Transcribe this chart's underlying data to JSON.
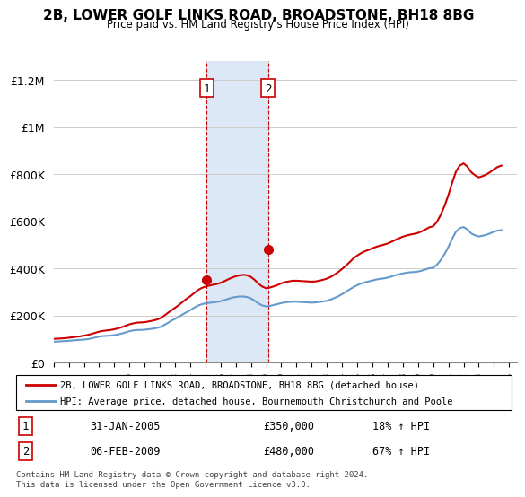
{
  "title": "2B, LOWER GOLF LINKS ROAD, BROADSTONE, BH18 8BG",
  "subtitle": "Price paid vs. HM Land Registry's House Price Index (HPI)",
  "ylabel_ticks": [
    "£0",
    "£200K",
    "£400K",
    "£600K",
    "£800K",
    "£1M",
    "£1.2M"
  ],
  "ytick_values": [
    0,
    200000,
    400000,
    600000,
    800000,
    1000000,
    1200000
  ],
  "ylim": [
    0,
    1280000
  ],
  "xlim_start": 1995.0,
  "xlim_end": 2025.5,
  "hpi_color": "#6699cc",
  "price_color": "#cc0000",
  "bg_color": "#ffffff",
  "grid_color": "#cccccc",
  "legend_line1": "2B, LOWER GOLF LINKS ROAD, BROADSTONE, BH18 8BG (detached house)",
  "legend_line2": "HPI: Average price, detached house, Bournemouth Christchurch and Poole",
  "sale1_label": "1",
  "sale1_date": "31-JAN-2005",
  "sale1_price": "£350,000",
  "sale1_hpi": "18% ↑ HPI",
  "sale1_x": 2005.08,
  "sale1_y": 350000,
  "sale2_label": "2",
  "sale2_date": "06-FEB-2009",
  "sale2_price": "£480,000",
  "sale2_hpi": "67% ↑ HPI",
  "sale2_x": 2009.12,
  "sale2_y": 480000,
  "shade_x1": 2005.08,
  "shade_x2": 2009.12,
  "footnote": "Contains HM Land Registry data © Crown copyright and database right 2024.\nThis data is licensed under the Open Government Licence v3.0.",
  "hpi_data_x": [
    1995,
    1995.25,
    1995.5,
    1995.75,
    1996,
    1996.25,
    1996.5,
    1996.75,
    1997,
    1997.25,
    1997.5,
    1997.75,
    1998,
    1998.25,
    1998.5,
    1998.75,
    1999,
    1999.25,
    1999.5,
    1999.75,
    2000,
    2000.25,
    2000.5,
    2000.75,
    2001,
    2001.25,
    2001.5,
    2001.75,
    2002,
    2002.25,
    2002.5,
    2002.75,
    2003,
    2003.25,
    2003.5,
    2003.75,
    2004,
    2004.25,
    2004.5,
    2004.75,
    2005,
    2005.25,
    2005.5,
    2005.75,
    2006,
    2006.25,
    2006.5,
    2006.75,
    2007,
    2007.25,
    2007.5,
    2007.75,
    2008,
    2008.25,
    2008.5,
    2008.75,
    2009,
    2009.25,
    2009.5,
    2009.75,
    2010,
    2010.25,
    2010.5,
    2010.75,
    2011,
    2011.25,
    2011.5,
    2011.75,
    2012,
    2012.25,
    2012.5,
    2012.75,
    2013,
    2013.25,
    2013.5,
    2013.75,
    2014,
    2014.25,
    2014.5,
    2014.75,
    2015,
    2015.25,
    2015.5,
    2015.75,
    2016,
    2016.25,
    2016.5,
    2016.75,
    2017,
    2017.25,
    2017.5,
    2017.75,
    2018,
    2018.25,
    2018.5,
    2018.75,
    2019,
    2019.25,
    2019.5,
    2019.75,
    2020,
    2020.25,
    2020.5,
    2020.75,
    2021,
    2021.25,
    2021.5,
    2021.75,
    2022,
    2022.25,
    2022.5,
    2022.75,
    2023,
    2023.25,
    2023.5,
    2023.75,
    2024,
    2024.25,
    2024.5
  ],
  "hpi_data_y": [
    88000,
    89000,
    90000,
    91000,
    92000,
    93500,
    95000,
    96000,
    97000,
    99000,
    102000,
    106000,
    110000,
    112000,
    113000,
    114000,
    116000,
    119000,
    123000,
    128000,
    133000,
    136000,
    138000,
    138000,
    139000,
    141000,
    143000,
    146000,
    150000,
    158000,
    167000,
    177000,
    185000,
    194000,
    204000,
    213000,
    222000,
    232000,
    241000,
    247000,
    251000,
    253000,
    255000,
    257000,
    260000,
    265000,
    270000,
    275000,
    278000,
    280000,
    280000,
    278000,
    272000,
    262000,
    250000,
    242000,
    238000,
    240000,
    244000,
    248000,
    252000,
    255000,
    257000,
    258000,
    258000,
    257000,
    256000,
    255000,
    254000,
    255000,
    257000,
    259000,
    262000,
    267000,
    274000,
    281000,
    290000,
    300000,
    310000,
    320000,
    328000,
    335000,
    340000,
    344000,
    348000,
    352000,
    355000,
    357000,
    360000,
    365000,
    370000,
    374000,
    378000,
    381000,
    383000,
    384000,
    386000,
    390000,
    395000,
    400000,
    402000,
    415000,
    435000,
    460000,
    490000,
    525000,
    555000,
    570000,
    575000,
    565000,
    548000,
    540000,
    535000,
    538000,
    542000,
    548000,
    555000,
    560000,
    562000
  ],
  "price_data_x": [
    1995,
    1995.25,
    1995.5,
    1995.75,
    1996,
    1996.25,
    1996.5,
    1996.75,
    1997,
    1997.25,
    1997.5,
    1997.75,
    1998,
    1998.25,
    1998.5,
    1998.75,
    1999,
    1999.25,
    1999.5,
    1999.75,
    2000,
    2000.25,
    2000.5,
    2000.75,
    2001,
    2001.25,
    2001.5,
    2001.75,
    2002,
    2002.25,
    2002.5,
    2002.75,
    2003,
    2003.25,
    2003.5,
    2003.75,
    2004,
    2004.25,
    2004.5,
    2004.75,
    2005,
    2005.25,
    2005.5,
    2005.75,
    2006,
    2006.25,
    2006.5,
    2006.75,
    2007,
    2007.25,
    2007.5,
    2007.75,
    2008,
    2008.25,
    2008.5,
    2008.75,
    2009,
    2009.25,
    2009.5,
    2009.75,
    2010,
    2010.25,
    2010.5,
    2010.75,
    2011,
    2011.25,
    2011.5,
    2011.75,
    2012,
    2012.25,
    2012.5,
    2012.75,
    2013,
    2013.25,
    2013.5,
    2013.75,
    2014,
    2014.25,
    2014.5,
    2014.75,
    2015,
    2015.25,
    2015.5,
    2015.75,
    2016,
    2016.25,
    2016.5,
    2016.75,
    2017,
    2017.25,
    2017.5,
    2017.75,
    2018,
    2018.25,
    2018.5,
    2018.75,
    2019,
    2019.25,
    2019.5,
    2019.75,
    2020,
    2020.25,
    2020.5,
    2020.75,
    2021,
    2021.25,
    2021.5,
    2021.75,
    2022,
    2022.25,
    2022.5,
    2022.75,
    2023,
    2023.25,
    2023.5,
    2023.75,
    2024,
    2024.25,
    2024.5
  ],
  "price_data_y": [
    100000,
    101000,
    102000,
    103000,
    105000,
    107000,
    109000,
    111000,
    114000,
    117000,
    121000,
    126000,
    131000,
    134000,
    136000,
    138000,
    141000,
    145000,
    150000,
    156000,
    162000,
    166000,
    169000,
    170000,
    171000,
    174000,
    177000,
    181000,
    187000,
    197000,
    209000,
    221000,
    232000,
    244000,
    257000,
    270000,
    281000,
    294000,
    307000,
    316000,
    322000,
    326000,
    330000,
    333000,
    338000,
    345000,
    353000,
    360000,
    366000,
    370000,
    372000,
    370000,
    363000,
    350000,
    334000,
    322000,
    315000,
    318000,
    323000,
    329000,
    336000,
    341000,
    344000,
    347000,
    347000,
    346000,
    345000,
    344000,
    343000,
    344000,
    347000,
    351000,
    356000,
    363000,
    373000,
    384000,
    397000,
    411000,
    426000,
    442000,
    454000,
    464000,
    472000,
    478000,
    485000,
    491000,
    496000,
    500000,
    505000,
    512000,
    520000,
    527000,
    534000,
    539000,
    543000,
    546000,
    550000,
    557000,
    565000,
    574000,
    578000,
    597000,
    627000,
    665000,
    710000,
    763000,
    810000,
    836000,
    845000,
    832000,
    808000,
    795000,
    786000,
    791000,
    798000,
    808000,
    820000,
    830000,
    836000
  ],
  "xtick_years": [
    1995,
    1996,
    1997,
    1998,
    1999,
    2000,
    2001,
    2002,
    2003,
    2004,
    2005,
    2006,
    2007,
    2008,
    2009,
    2010,
    2011,
    2012,
    2013,
    2014,
    2015,
    2016,
    2017,
    2018,
    2019,
    2020,
    2021,
    2022,
    2023,
    2024,
    2025
  ]
}
